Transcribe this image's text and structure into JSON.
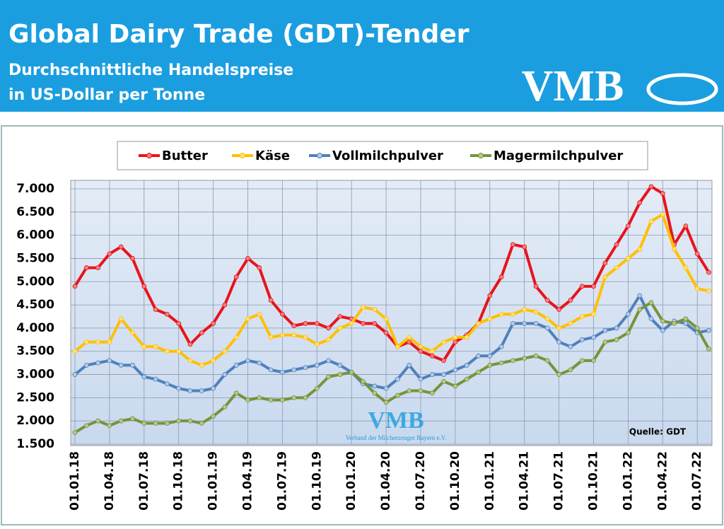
{
  "header": {
    "title": "Global Dairy Trade (GDT)-Tender",
    "subtitle_1": "Durchschnittliche Handelspreise",
    "subtitle_2": "in US-Dollar per Tonne",
    "logo": "VMB"
  },
  "chart_data": {
    "type": "line",
    "watermark": "VMB",
    "watermark_caption": "Verband der Milcherzeuger Bayern e.V.",
    "source": "Quelle:  GDT",
    "categories": [
      "01.01.18",
      null,
      null,
      "01.04.18",
      null,
      null,
      "01.07.18",
      null,
      null,
      "01.10.18",
      null,
      null,
      "01.01.19",
      null,
      null,
      "01.04.19",
      null,
      null,
      "01.07.19",
      null,
      null,
      "01.10.19",
      null,
      null,
      "01.01.20",
      null,
      null,
      "01.04.20",
      null,
      null,
      "01.07.20",
      null,
      null,
      "01.10.20",
      null,
      null,
      "01.01.21",
      null,
      null,
      "01.04.21",
      null,
      null,
      "01.07.21",
      null,
      null,
      "01.10.21",
      null,
      null,
      "01.01.22",
      null,
      null,
      "01.04.22",
      null,
      null,
      "01.07.22",
      null
    ],
    "series": [
      {
        "name": "Butter",
        "color": "#e8141a",
        "marker": "#f08080",
        "values": [
          4900,
          5300,
          5300,
          5600,
          5750,
          5500,
          4900,
          4400,
          4300,
          4100,
          3650,
          3900,
          4100,
          4500,
          5100,
          5500,
          5300,
          4600,
          4300,
          4050,
          4100,
          4100,
          4000,
          4250,
          4200,
          4100,
          4100,
          3900,
          3600,
          3700,
          3500,
          3400,
          3300,
          3700,
          3850,
          4100,
          4700,
          5100,
          5800,
          5750,
          4900,
          4600,
          4400,
          4600,
          4900,
          4900,
          5400,
          5800,
          6200,
          6700,
          7050,
          6900,
          5800,
          6200,
          5600,
          5200
        ]
      },
      {
        "name": "Käse",
        "color": "#ffc000",
        "marker": "#ffe080",
        "values": [
          3500,
          3700,
          3700,
          3700,
          4200,
          3900,
          3600,
          3600,
          3500,
          3500,
          3300,
          3200,
          3300,
          3500,
          3800,
          4200,
          4300,
          3800,
          3850,
          3850,
          3800,
          3650,
          3750,
          4000,
          4100,
          4450,
          4400,
          4200,
          3600,
          3800,
          3600,
          3500,
          3700,
          3800,
          3800,
          4100,
          4200,
          4300,
          4300,
          4400,
          4350,
          4200,
          4000,
          4100,
          4250,
          4300,
          5100,
          5300,
          5500,
          5700,
          6300,
          6450,
          5700,
          5300,
          4850,
          4800
        ]
      },
      {
        "name": "Vollmilchpulver",
        "color": "#4f81bd",
        "marker": "#b4cbe8",
        "values": [
          3000,
          3200,
          3250,
          3300,
          3200,
          3200,
          2950,
          2900,
          2800,
          2700,
          2650,
          2650,
          2700,
          3000,
          3200,
          3300,
          3250,
          3100,
          3050,
          3100,
          3150,
          3200,
          3300,
          3200,
          3050,
          2800,
          2750,
          2700,
          2900,
          3200,
          2900,
          3000,
          3000,
          3100,
          3200,
          3400,
          3400,
          3600,
          4100,
          4100,
          4100,
          4000,
          3700,
          3600,
          3750,
          3800,
          3950,
          4000,
          4300,
          4700,
          4200,
          3950,
          4150,
          4100,
          3900,
          3950
        ]
      },
      {
        "name": "Magermilchpulver",
        "color": "#77933c",
        "marker": "#b3c98a",
        "values": [
          1750,
          1900,
          2000,
          1900,
          2000,
          2050,
          1950,
          1950,
          1950,
          2000,
          2000,
          1950,
          2100,
          2300,
          2600,
          2450,
          2500,
          2450,
          2450,
          2500,
          2500,
          2700,
          2950,
          3000,
          3050,
          2850,
          2600,
          2400,
          2550,
          2650,
          2650,
          2600,
          2850,
          2750,
          2900,
          3050,
          3200,
          3250,
          3300,
          3350,
          3400,
          3300,
          3000,
          3100,
          3300,
          3300,
          3700,
          3750,
          3900,
          4400,
          4550,
          4150,
          4100,
          4200,
          4000,
          3550
        ]
      }
    ],
    "ylim": [
      1500,
      7000
    ],
    "yticks": [
      {
        "value": 1500,
        "label": "1.500"
      },
      {
        "value": 2000,
        "label": "2.000"
      },
      {
        "value": 2500,
        "label": "2.500"
      },
      {
        "value": 3000,
        "label": "3.000"
      },
      {
        "value": 3500,
        "label": "3.500"
      },
      {
        "value": 4000,
        "label": "4.000"
      },
      {
        "value": 4500,
        "label": "4.500"
      },
      {
        "value": 5000,
        "label": "5.000"
      },
      {
        "value": 5500,
        "label": "5.500"
      },
      {
        "value": 6000,
        "label": "6.000"
      },
      {
        "value": 6500,
        "label": "6.500"
      },
      {
        "value": 7000,
        "label": "7.000"
      }
    ],
    "grid": true
  }
}
